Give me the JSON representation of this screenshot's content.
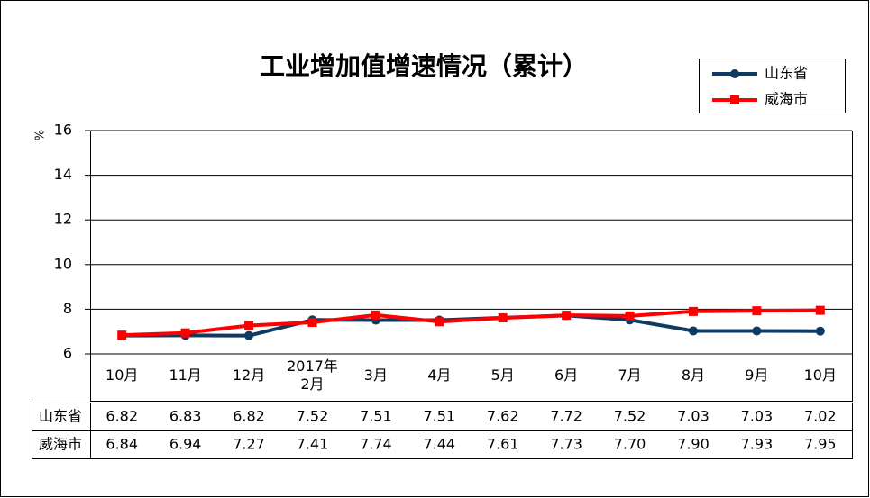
{
  "chart_data": {
    "type": "line",
    "title": "工业增加值增速情况（累计）",
    "y_label": "%",
    "categories": [
      "10月",
      "11月",
      "12月",
      "2017年\n2月",
      "3月",
      "4月",
      "5月",
      "6月",
      "7月",
      "8月",
      "9月",
      "10月"
    ],
    "series": [
      {
        "name": "山东省",
        "color": "#0f3a62",
        "marker": "circle",
        "values": [
          6.82,
          6.83,
          6.82,
          7.52,
          7.51,
          7.51,
          7.62,
          7.72,
          7.52,
          7.03,
          7.03,
          7.02
        ],
        "value_labels": [
          "6.82",
          "6.83",
          "6.82",
          "7.52",
          "7.51",
          "7.51",
          "7.62",
          "7.72",
          "7.52",
          "7.03",
          "7.03",
          "7.02"
        ]
      },
      {
        "name": "威海市",
        "color": "#ff0000",
        "marker": "square",
        "values": [
          6.84,
          6.94,
          7.27,
          7.41,
          7.74,
          7.44,
          7.61,
          7.73,
          7.7,
          7.9,
          7.93,
          7.95
        ],
        "value_labels": [
          "6.84",
          "6.94",
          "7.27",
          "7.41",
          "7.74",
          "7.44",
          "7.61",
          "7.73",
          "7.70",
          "7.90",
          "7.93",
          "7.95"
        ]
      }
    ],
    "ylim": [
      6,
      16
    ],
    "yticks": [
      6,
      8,
      10,
      12,
      14,
      16
    ],
    "grid": true,
    "legend": "top-right"
  }
}
